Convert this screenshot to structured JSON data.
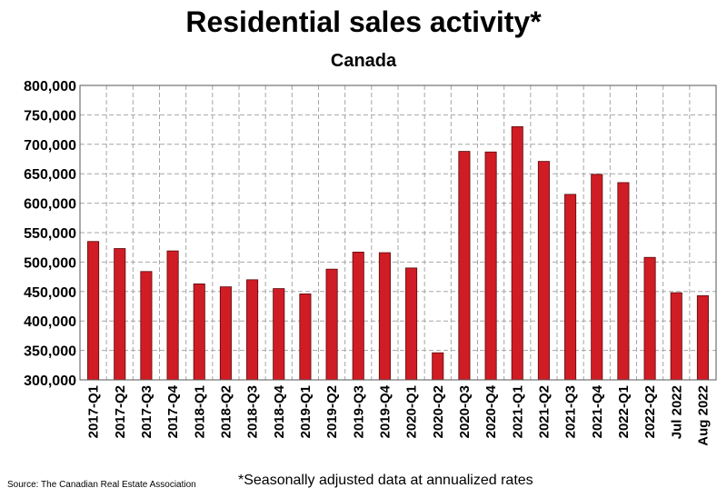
{
  "title": "Residential sales activity*",
  "subtitle": "Canada",
  "source": "Source: The Canadian Real Estate Association",
  "footnote": "*Seasonally adjusted data at annualized rates",
  "colors": {
    "bar": "#d01c24",
    "bar_edge": "#5a0a0c",
    "grid": "#a6a6a6"
  },
  "chart_data": {
    "type": "bar",
    "title": "Residential sales activity*",
    "subtitle": "Canada",
    "xlabel": "",
    "ylabel": "",
    "ylim": [
      300000,
      800000
    ],
    "yticks": [
      "300,000",
      "350,000",
      "400,000",
      "450,000",
      "500,000",
      "550,000",
      "600,000",
      "650,000",
      "700,000",
      "750,000",
      "800,000"
    ],
    "categories": [
      "2017-Q1",
      "2017-Q2",
      "2017-Q3",
      "2017-Q4",
      "2018-Q1",
      "2018-Q2",
      "2018-Q3",
      "2018-Q4",
      "2019-Q1",
      "2019-Q2",
      "2019-Q3",
      "2019-Q4",
      "2020-Q1",
      "2020-Q2",
      "2020-Q3",
      "2020-Q4",
      "2021-Q1",
      "2021-Q2",
      "2021-Q3",
      "2021-Q4",
      "2022-Q1",
      "2022-Q2",
      "Jul 2022",
      "Aug 2022"
    ],
    "values": [
      535000,
      523000,
      484000,
      519000,
      463000,
      458000,
      470000,
      455000,
      446000,
      488000,
      517000,
      516000,
      490000,
      346000,
      688000,
      687000,
      730000,
      671000,
      615000,
      649000,
      635000,
      508000,
      448000,
      443000
    ],
    "grid": true,
    "legend": "none"
  }
}
